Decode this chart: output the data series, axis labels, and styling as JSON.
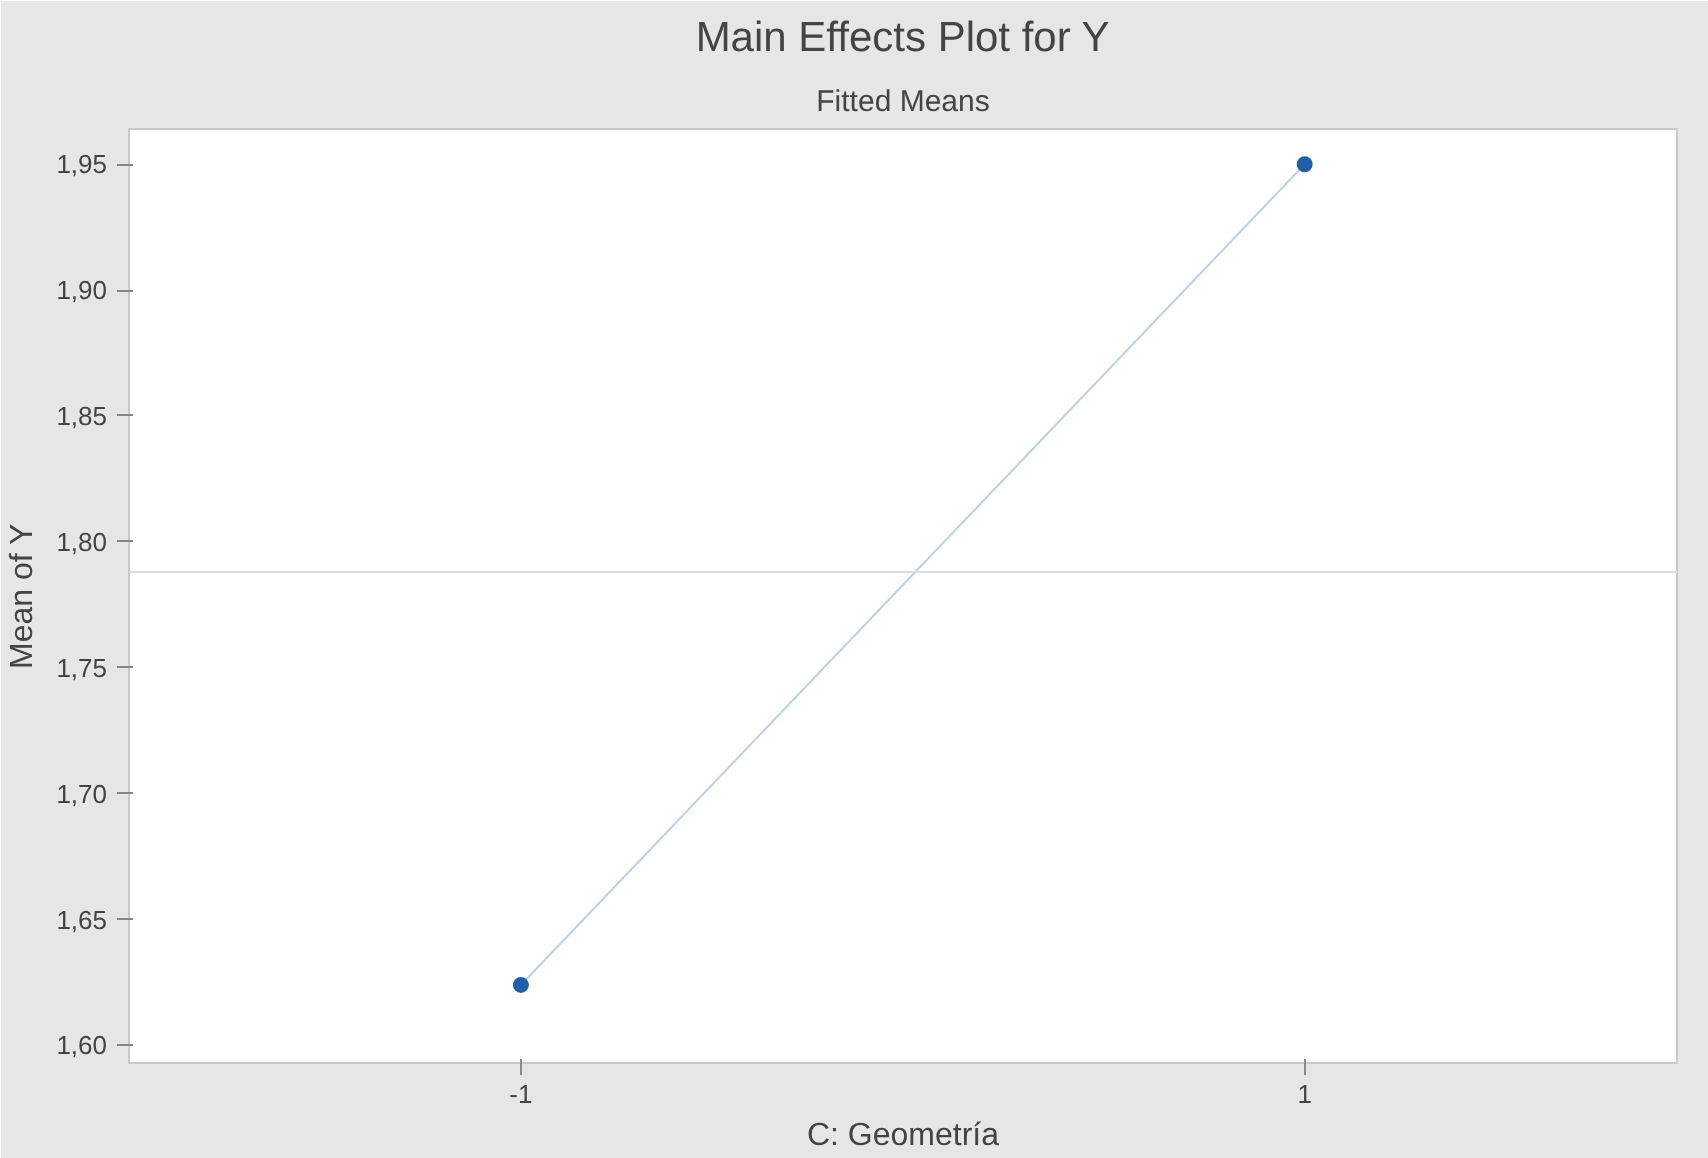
{
  "chart_data": {
    "type": "line",
    "title": "Main Effects Plot for Y",
    "subtitle": "Fitted Means",
    "xlabel": "C: Geometría",
    "ylabel": "Mean of Y",
    "x": [
      -1,
      1
    ],
    "series": [
      {
        "color": "#1f5fa8",
        "values": [
          1.624,
          1.95
        ]
      }
    ],
    "xlim": [
      -2,
      1.95
    ],
    "xticks": [
      -1,
      1
    ],
    "ylim": [
      1.593,
      1.964
    ],
    "yticks": [
      {
        "value": 1.6,
        "label": "1,60"
      },
      {
        "value": 1.65,
        "label": "1,65"
      },
      {
        "value": 1.7,
        "label": "1,70"
      },
      {
        "value": 1.75,
        "label": "1,75"
      },
      {
        "value": 1.8,
        "label": "1,80"
      },
      {
        "value": 1.85,
        "label": "1,85"
      },
      {
        "value": 1.9,
        "label": "1,90"
      },
      {
        "value": 1.95,
        "label": "1,95"
      }
    ],
    "ref_lines": [
      {
        "axis": "y",
        "value": 1.788,
        "color": "#dcdcdc"
      }
    ],
    "marker": "circle",
    "line_style": "solid",
    "grid": false
  }
}
